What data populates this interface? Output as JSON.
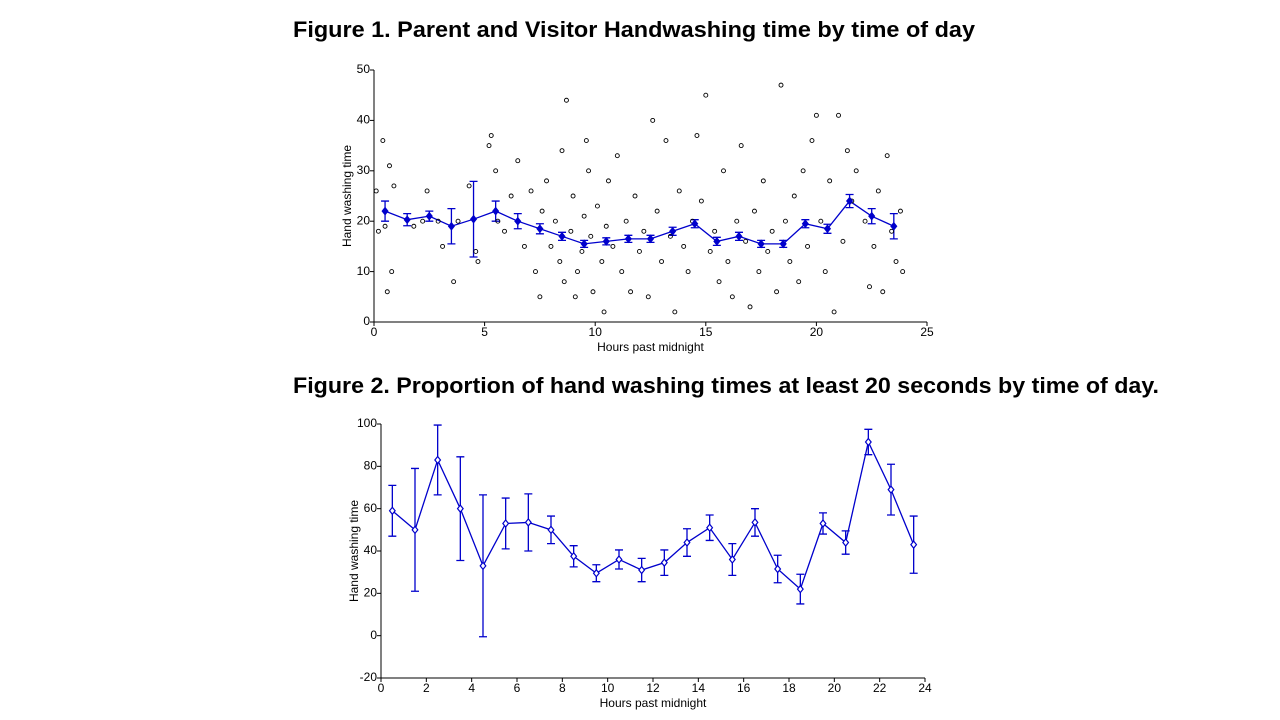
{
  "chart_data": [
    {
      "type": "scatter",
      "title": "Figure 1.  Parent and Visitor Handwashing time by time of day",
      "x_label": "Hours past midnight",
      "y_label": "Hand washing time",
      "xlim": [
        0,
        25
      ],
      "xticks": [
        0,
        5,
        10,
        15,
        20,
        25
      ],
      "ylim": [
        0,
        50
      ],
      "yticks": [
        0,
        10,
        20,
        30,
        40,
        50
      ],
      "series": [
        {
          "color": "#000000",
          "marker": "open-circle",
          "x": [
            0.1,
            0.2,
            0.4,
            0.5,
            0.6,
            0.7,
            0.8,
            0.9,
            1.8,
            2.2,
            2.4,
            2.9,
            3.1,
            3.6,
            3.8,
            4.3,
            4.6,
            4.7,
            5.2,
            5.3,
            5.5,
            5.6,
            5.9,
            6.2,
            6.5,
            6.8,
            7.1,
            7.3,
            7.5,
            7.6,
            7.8,
            8.0,
            8.2,
            8.4,
            8.5,
            8.6,
            8.7,
            8.9,
            9.0,
            9.1,
            9.2,
            9.4,
            9.5,
            9.6,
            9.7,
            9.8,
            9.9,
            10.1,
            10.3,
            10.4,
            10.5,
            10.6,
            10.8,
            11.0,
            11.2,
            11.4,
            11.6,
            11.8,
            12.0,
            12.2,
            12.4,
            12.6,
            12.8,
            13.0,
            13.2,
            13.4,
            13.6,
            13.8,
            14.0,
            14.2,
            14.4,
            14.6,
            14.8,
            15.0,
            15.2,
            15.4,
            15.6,
            15.8,
            16.0,
            16.2,
            16.4,
            16.6,
            16.8,
            17.0,
            17.2,
            17.4,
            17.6,
            17.8,
            18.0,
            18.2,
            18.4,
            18.6,
            18.8,
            19.0,
            19.2,
            19.4,
            19.6,
            19.8,
            20.0,
            20.2,
            20.4,
            20.6,
            20.8,
            21.0,
            21.2,
            21.4,
            21.6,
            21.8,
            22.2,
            22.4,
            22.6,
            22.8,
            23.0,
            23.2,
            23.4,
            23.6,
            23.8,
            23.9
          ],
          "values": [
            26,
            18,
            36,
            19,
            6,
            31,
            10,
            27,
            19,
            20,
            26,
            20,
            15,
            8,
            20,
            27,
            14,
            12,
            35,
            37,
            30,
            20,
            18,
            25,
            32,
            15,
            26,
            10,
            5,
            22,
            28,
            15,
            20,
            12,
            34,
            8,
            44,
            18,
            25,
            5,
            10,
            14,
            21,
            36,
            30,
            17,
            6,
            23,
            12,
            2,
            19,
            28,
            15,
            33,
            10,
            20,
            6,
            25,
            14,
            18,
            5,
            40,
            22,
            12,
            36,
            17,
            2,
            26,
            15,
            10,
            20,
            37,
            24,
            45,
            14,
            18,
            8,
            30,
            12,
            5,
            20,
            35,
            16,
            3,
            22,
            10,
            28,
            14,
            18,
            6,
            47,
            20,
            12,
            25,
            8,
            30,
            15,
            36,
            41,
            20,
            10,
            28,
            2,
            41,
            16,
            34,
            24,
            30,
            20,
            7,
            15,
            26,
            6,
            33,
            18,
            12,
            22,
            10
          ]
        },
        {
          "color": "#0000cc",
          "marker": "filled-diamond",
          "x": [
            0.5,
            1.5,
            2.5,
            3.5,
            4.5,
            5.5,
            6.5,
            7.5,
            8.5,
            9.5,
            10.5,
            11.5,
            12.5,
            13.5,
            14.5,
            15.5,
            16.5,
            17.5,
            18.5,
            19.5,
            20.5,
            21.5,
            22.5,
            23.5
          ],
          "values": [
            22,
            20.3,
            21,
            19,
            20.4,
            22,
            20,
            18.5,
            17,
            15.5,
            16,
            16.5,
            16.5,
            18,
            19.5,
            16,
            17,
            15.5,
            15.5,
            19.5,
            18.5,
            24,
            21,
            19
          ],
          "errors": [
            2,
            1.2,
            1,
            3.5,
            7.5,
            2,
            1.5,
            1,
            0.8,
            0.7,
            0.7,
            0.7,
            0.7,
            0.8,
            0.8,
            0.8,
            0.8,
            0.7,
            0.7,
            0.8,
            0.9,
            1.3,
            1.5,
            2.5
          ]
        }
      ]
    },
    {
      "type": "line",
      "title": "Figure 2.  Proportion of hand washing times at least 20 seconds by time of day.",
      "x_label": "Hours past midnight",
      "y_label": "Hand washing time",
      "xlim": [
        0,
        24
      ],
      "xticks": [
        0,
        2,
        4,
        6,
        8,
        10,
        12,
        14,
        16,
        18,
        20,
        22,
        24
      ],
      "ylim": [
        -20,
        100
      ],
      "yticks": [
        -20,
        0,
        20,
        40,
        60,
        80,
        100
      ],
      "series": [
        {
          "color": "#0000cc",
          "marker": "open-diamond",
          "x": [
            0.5,
            1.5,
            2.5,
            3.5,
            4.5,
            5.5,
            6.5,
            7.5,
            8.5,
            9.5,
            10.5,
            11.5,
            12.5,
            13.5,
            14.5,
            15.5,
            16.5,
            17.5,
            18.5,
            19.5,
            20.5,
            21.5,
            22.5,
            23.5
          ],
          "values": [
            59,
            50,
            83,
            60,
            33,
            53,
            53.5,
            50,
            37.5,
            29.5,
            36,
            31,
            34.5,
            44,
            51,
            36,
            53.5,
            31.5,
            22,
            53,
            44,
            91.5,
            69,
            43
          ],
          "errors": [
            12,
            29,
            16.5,
            24.5,
            33.5,
            12,
            13.5,
            6.5,
            5,
            4,
            4.5,
            5.5,
            6,
            6.5,
            6,
            7.5,
            6.5,
            6.5,
            7,
            5,
            5.5,
            6,
            12,
            13.5
          ]
        }
      ]
    }
  ]
}
